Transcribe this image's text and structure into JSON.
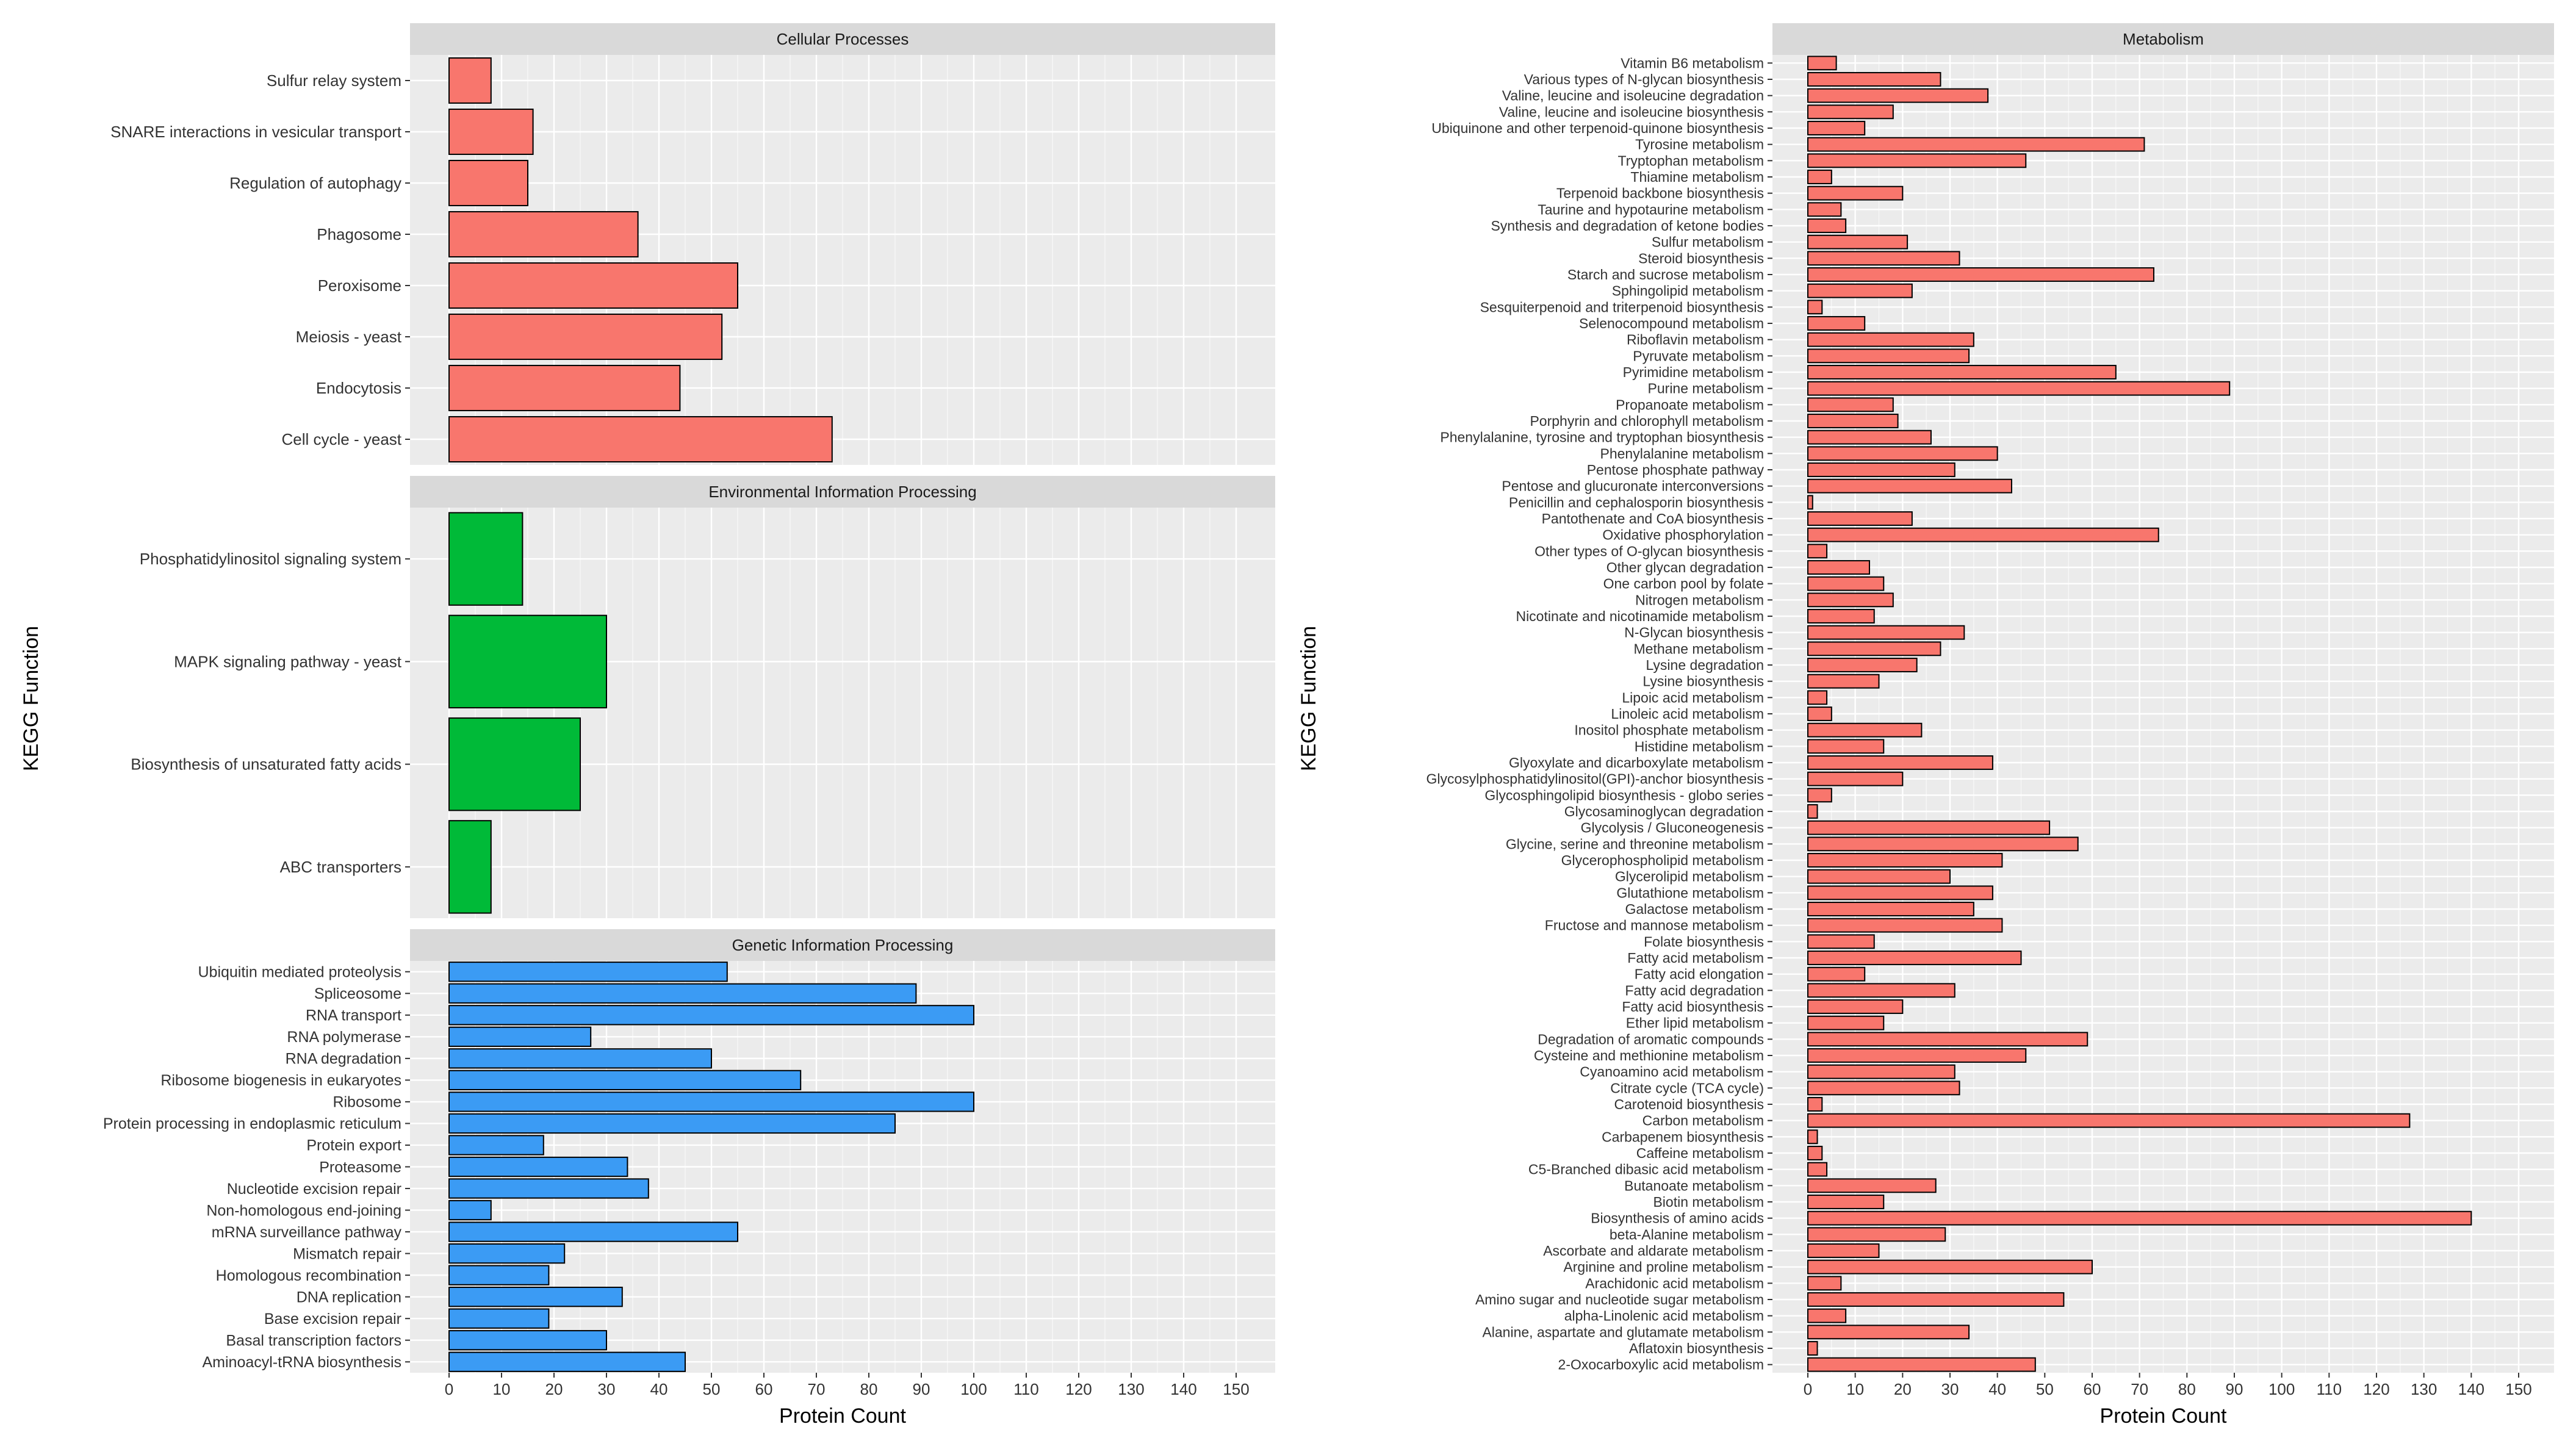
{
  "colors": {
    "cellular": "#F8766D",
    "environmental": "#00BA38",
    "genetic": "#3B9BF4",
    "metabolism": "#F8766D",
    "panel_bg": "#EBEBEB",
    "strip_bg": "#D9D9D9",
    "grid": "#FFFFFF",
    "bar_stroke": "#000000",
    "text": "#333333"
  },
  "chart_data": [
    {
      "type": "bar",
      "orientation": "horizontal",
      "title": "Cellular Processes",
      "xlabel": "Protein Count",
      "ylabel": "KEGG Function",
      "xlim": [
        0,
        150
      ],
      "xticks": [
        0,
        10,
        20,
        30,
        40,
        50,
        60,
        70,
        80,
        90,
        100,
        110,
        120,
        130,
        140,
        150
      ],
      "categories": [
        "Sulfur relay system",
        "SNARE interactions in vesicular transport",
        "Regulation of autophagy",
        "Phagosome",
        "Peroxisome",
        "Meiosis - yeast",
        "Endocytosis",
        "Cell cycle - yeast"
      ],
      "values": [
        8,
        16,
        15,
        36,
        55,
        52,
        44,
        73
      ],
      "color_key": "cellular"
    },
    {
      "type": "bar",
      "orientation": "horizontal",
      "title": "Environmental Information Processing",
      "xlabel": "Protein Count",
      "ylabel": "KEGG Function",
      "xlim": [
        0,
        150
      ],
      "categories": [
        "Phosphatidylinositol signaling system",
        "MAPK signaling pathway - yeast",
        "Biosynthesis of unsaturated fatty acids",
        "ABC transporters"
      ],
      "values": [
        14,
        30,
        25,
        8
      ],
      "color_key": "environmental"
    },
    {
      "type": "bar",
      "orientation": "horizontal",
      "title": "Genetic Information Processing",
      "xlabel": "Protein Count",
      "ylabel": "KEGG Function",
      "xlim": [
        0,
        150
      ],
      "categories": [
        "Ubiquitin mediated proteolysis",
        "Spliceosome",
        "RNA transport",
        "RNA polymerase",
        "RNA degradation",
        "Ribosome biogenesis in eukaryotes",
        "Ribosome",
        "Protein processing in endoplasmic reticulum",
        "Protein export",
        "Proteasome",
        "Nucleotide excision repair",
        "Non-homologous end-joining",
        "mRNA surveillance pathway",
        "Mismatch repair",
        "Homologous recombination",
        "DNA replication",
        "Base excision repair",
        "Basal transcription factors",
        "Aminoacyl-tRNA biosynthesis"
      ],
      "values": [
        53,
        89,
        100,
        27,
        50,
        67,
        100,
        85,
        18,
        34,
        38,
        8,
        55,
        22,
        19,
        33,
        19,
        30,
        45
      ],
      "color_key": "genetic"
    },
    {
      "type": "bar",
      "orientation": "horizontal",
      "title": "Metabolism",
      "xlabel": "Protein Count",
      "ylabel": "KEGG Function",
      "xlim": [
        0,
        150
      ],
      "xticks": [
        0,
        10,
        20,
        30,
        40,
        50,
        60,
        70,
        80,
        90,
        100,
        110,
        120,
        130,
        140,
        150
      ],
      "categories": [
        "Vitamin B6 metabolism",
        "Various types of N-glycan biosynthesis",
        "Valine, leucine and isoleucine degradation",
        "Valine, leucine and isoleucine biosynthesis",
        "Ubiquinone and other terpenoid-quinone biosynthesis",
        "Tyrosine metabolism",
        "Tryptophan metabolism",
        "Thiamine metabolism",
        "Terpenoid backbone biosynthesis",
        "Taurine and hypotaurine metabolism",
        "Synthesis and degradation of ketone bodies",
        "Sulfur metabolism",
        "Steroid biosynthesis",
        "Starch and sucrose metabolism",
        "Sphingolipid metabolism",
        "Sesquiterpenoid and triterpenoid biosynthesis",
        "Selenocompound metabolism",
        "Riboflavin metabolism",
        "Pyruvate metabolism",
        "Pyrimidine metabolism",
        "Purine metabolism",
        "Propanoate metabolism",
        "Porphyrin and chlorophyll metabolism",
        "Phenylalanine, tyrosine and tryptophan biosynthesis",
        "Phenylalanine metabolism",
        "Pentose phosphate pathway",
        "Pentose and glucuronate interconversions",
        "Penicillin and cephalosporin biosynthesis",
        "Pantothenate and CoA biosynthesis",
        "Oxidative phosphorylation",
        "Other types of O-glycan biosynthesis",
        "Other glycan degradation",
        "One carbon pool by folate",
        "Nitrogen metabolism",
        "Nicotinate and nicotinamide metabolism",
        "N-Glycan biosynthesis",
        "Methane metabolism",
        "Lysine degradation",
        "Lysine biosynthesis",
        "Lipoic acid metabolism",
        "Linoleic acid metabolism",
        "Inositol phosphate metabolism",
        "Histidine metabolism",
        "Glyoxylate and dicarboxylate metabolism",
        "Glycosylphosphatidylinositol(GPI)-anchor biosynthesis",
        "Glycosphingolipid biosynthesis - globo series",
        "Glycosaminoglycan degradation",
        "Glycolysis / Gluconeogenesis",
        "Glycine, serine and threonine metabolism",
        "Glycerophospholipid metabolism",
        "Glycerolipid metabolism",
        "Glutathione metabolism",
        "Galactose metabolism",
        "Fructose and mannose metabolism",
        "Folate biosynthesis",
        "Fatty acid metabolism",
        "Fatty acid elongation",
        "Fatty acid degradation",
        "Fatty acid biosynthesis",
        "Ether lipid metabolism",
        "Degradation of aromatic compounds",
        "Cysteine and methionine metabolism",
        "Cyanoamino acid metabolism",
        "Citrate cycle (TCA cycle)",
        "Carotenoid biosynthesis",
        "Carbon metabolism",
        "Carbapenem biosynthesis",
        "Caffeine metabolism",
        "C5-Branched dibasic acid metabolism",
        "Butanoate metabolism",
        "Biotin metabolism",
        "Biosynthesis of amino acids",
        "beta-Alanine metabolism",
        "Ascorbate and aldarate metabolism",
        "Arginine and proline metabolism",
        "Arachidonic acid metabolism",
        "Amino sugar and nucleotide sugar metabolism",
        "alpha-Linolenic acid metabolism",
        "Alanine, aspartate and glutamate metabolism",
        "Aflatoxin biosynthesis",
        "2-Oxocarboxylic acid metabolism"
      ],
      "values": [
        6,
        28,
        38,
        18,
        12,
        71,
        46,
        5,
        20,
        7,
        8,
        21,
        32,
        73,
        22,
        3,
        12,
        35,
        34,
        65,
        89,
        18,
        19,
        26,
        40,
        31,
        43,
        1,
        22,
        74,
        4,
        13,
        16,
        18,
        14,
        33,
        28,
        23,
        15,
        4,
        5,
        24,
        16,
        39,
        20,
        5,
        2,
        51,
        57,
        41,
        30,
        39,
        35,
        41,
        14,
        45,
        12,
        31,
        20,
        16,
        59,
        46,
        31,
        32,
        3,
        127,
        2,
        3,
        4,
        27,
        16,
        140,
        29,
        15,
        60,
        7,
        54,
        8,
        34,
        2,
        48
      ],
      "color_key": "metabolism"
    }
  ]
}
